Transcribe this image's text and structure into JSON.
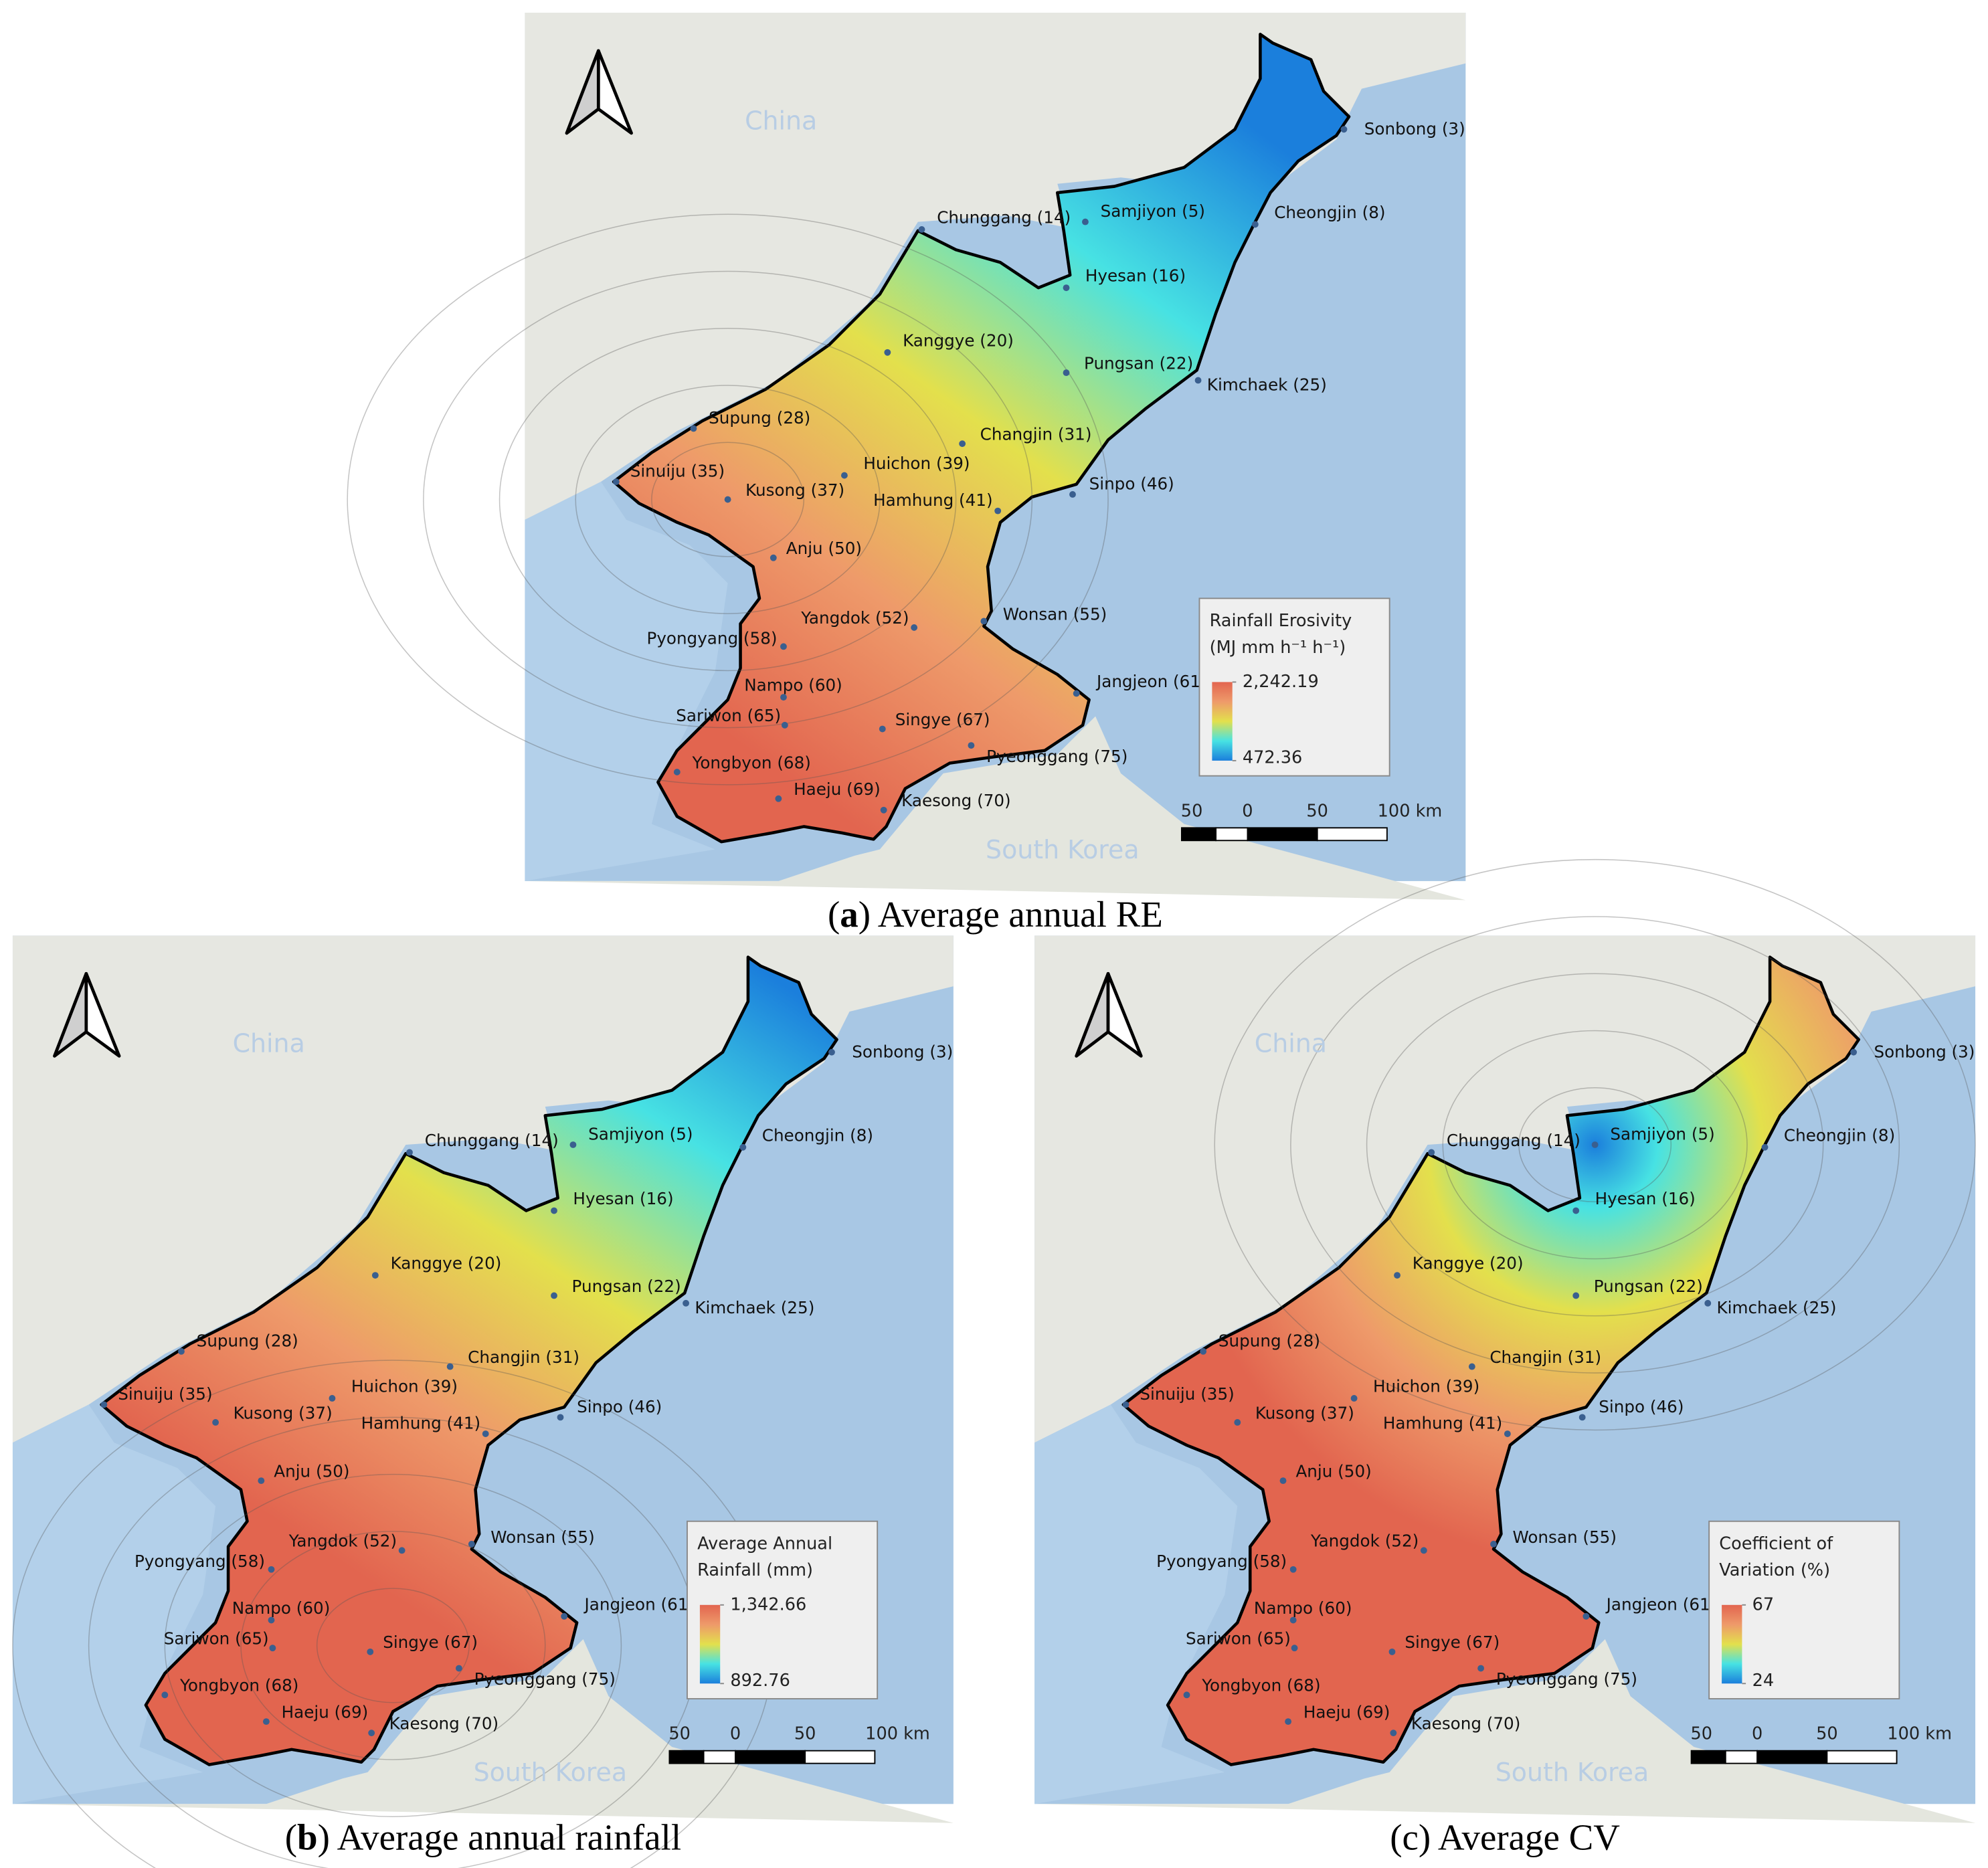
{
  "panels": [
    {
      "caption": {
        "open": "(",
        "label": "a",
        "close": ") Average annual RE"
      },
      "legend": {
        "title": [
          "Rainfall Erosivity",
          "(MJ mm h⁻¹ h⁻¹)"
        ],
        "ticks": [
          {
            "value": 2242.19,
            "label": "2,242.19"
          },
          {
            "value": 472.36,
            "label": "472.36"
          }
        ]
      }
    },
    {
      "caption": {
        "open": "(",
        "label": "b",
        "close": ") Average annual rainfall"
      },
      "legend": {
        "title": [
          "Average Annual",
          "Rainfall (mm)"
        ],
        "ticks": [
          {
            "value": 1342.66,
            "label": "1,342.66"
          },
          {
            "value": 892.76,
            "label": "892.76"
          }
        ]
      }
    },
    {
      "caption": {
        "open": "(",
        "label": "c",
        "close": ") Average CV"
      },
      "legend": {
        "title": [
          "Coefficient of",
          "Variation (%)"
        ],
        "ticks": [
          67,
          24
        ]
      }
    }
  ],
  "colormap": [
    "#e2654f",
    "#ee9a6a",
    "#e3e04c",
    "#47e2e3",
    "#1b7fdc"
  ],
  "stations": [
    "Sonbong (3)",
    "Samjiyon (5)",
    "Cheongjin (8)",
    "Chunggang (14)",
    "Hyesan (16)",
    "Kanggye (20)",
    "Pungsan (22)",
    "Kimchaek (25)",
    "Supung (28)",
    "Changjin (31)",
    "Sinuiju (35)",
    "Huichon (39)",
    "Kusong (37)",
    "Sinpo (46)",
    "Hamhung (41)",
    "Anju (50)",
    "Wonsan (55)",
    "Yangdok (52)",
    "Pyongyang (58)",
    "Jangjeon (61)",
    "Nampo (60)",
    "Sariwon (65)",
    "Singye (67)",
    "Pyeonggang (75)",
    "Yongbyon (68)",
    "Haeju (69)",
    "Kaesong (70)"
  ],
  "places": {
    "china": "China",
    "south_korea": "South Korea"
  },
  "scale_bar": [
    "50",
    "0",
    "50",
    "100 km"
  ]
}
